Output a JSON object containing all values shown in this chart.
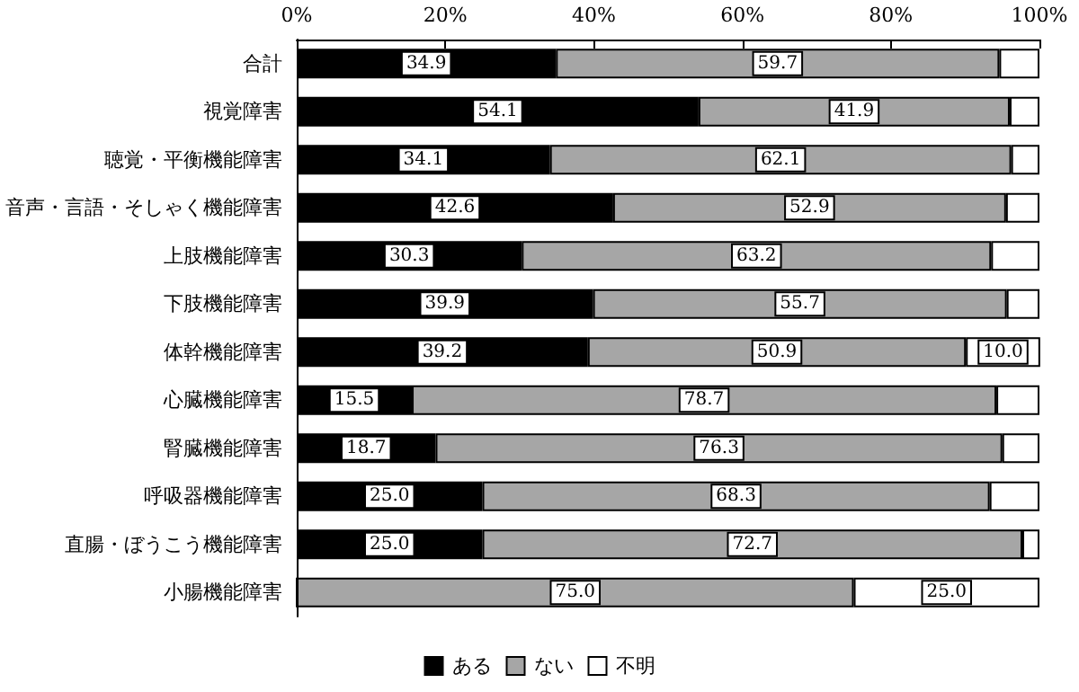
{
  "chart_data": {
    "type": "bar",
    "orientation": "horizontal",
    "stacked": true,
    "categories": [
      "合計",
      "視覚障害",
      "聴覚・平衡機能障害",
      "音声・言語・そしゃく機能障害",
      "上肢機能障害",
      "下肢機能障害",
      "体幹機能障害",
      "心臓機能障害",
      "腎臓機能障害",
      "呼吸器機能障害",
      "直腸・ぼうこう機能障害",
      "小腸機能障害"
    ],
    "series": [
      {
        "name": "ある",
        "color": "#000000",
        "values": [
          34.9,
          54.1,
          34.1,
          42.6,
          30.3,
          39.9,
          39.2,
          15.5,
          18.7,
          25.0,
          25.0,
          0
        ],
        "value_labels": [
          "34.9",
          "54.1",
          "34.1",
          "42.6",
          "30.3",
          "39.9",
          "39.2",
          "15.5",
          "18.7",
          "25.0",
          "25.0",
          null
        ]
      },
      {
        "name": "ない",
        "color": "#a6a6a6",
        "values": [
          59.7,
          41.9,
          62.1,
          52.9,
          63.2,
          55.7,
          50.9,
          78.7,
          76.3,
          68.3,
          72.7,
          75.0
        ],
        "value_labels": [
          "59.7",
          "41.9",
          "62.1",
          "52.9",
          "63.2",
          "55.7",
          "50.9",
          "78.7",
          "76.3",
          "68.3",
          "72.7",
          "75.0"
        ]
      },
      {
        "name": "不明",
        "color": "#ffffff",
        "values": [
          5.4,
          4.0,
          3.8,
          4.5,
          6.5,
          4.4,
          10.0,
          5.8,
          5.0,
          6.7,
          2.3,
          25.0
        ],
        "value_labels": [
          null,
          null,
          null,
          null,
          null,
          null,
          "10.0",
          null,
          null,
          null,
          null,
          "25.0"
        ]
      }
    ],
    "xlim": [
      0,
      100
    ],
    "xticks": [
      {
        "value": 0,
        "label": "0%"
      },
      {
        "value": 20,
        "label": "20%"
      },
      {
        "value": 40,
        "label": "40%"
      },
      {
        "value": 60,
        "label": "60%"
      },
      {
        "value": 80,
        "label": "80%"
      },
      {
        "value": 100,
        "label": "100%"
      }
    ],
    "grid": false,
    "legend": "bottom"
  }
}
